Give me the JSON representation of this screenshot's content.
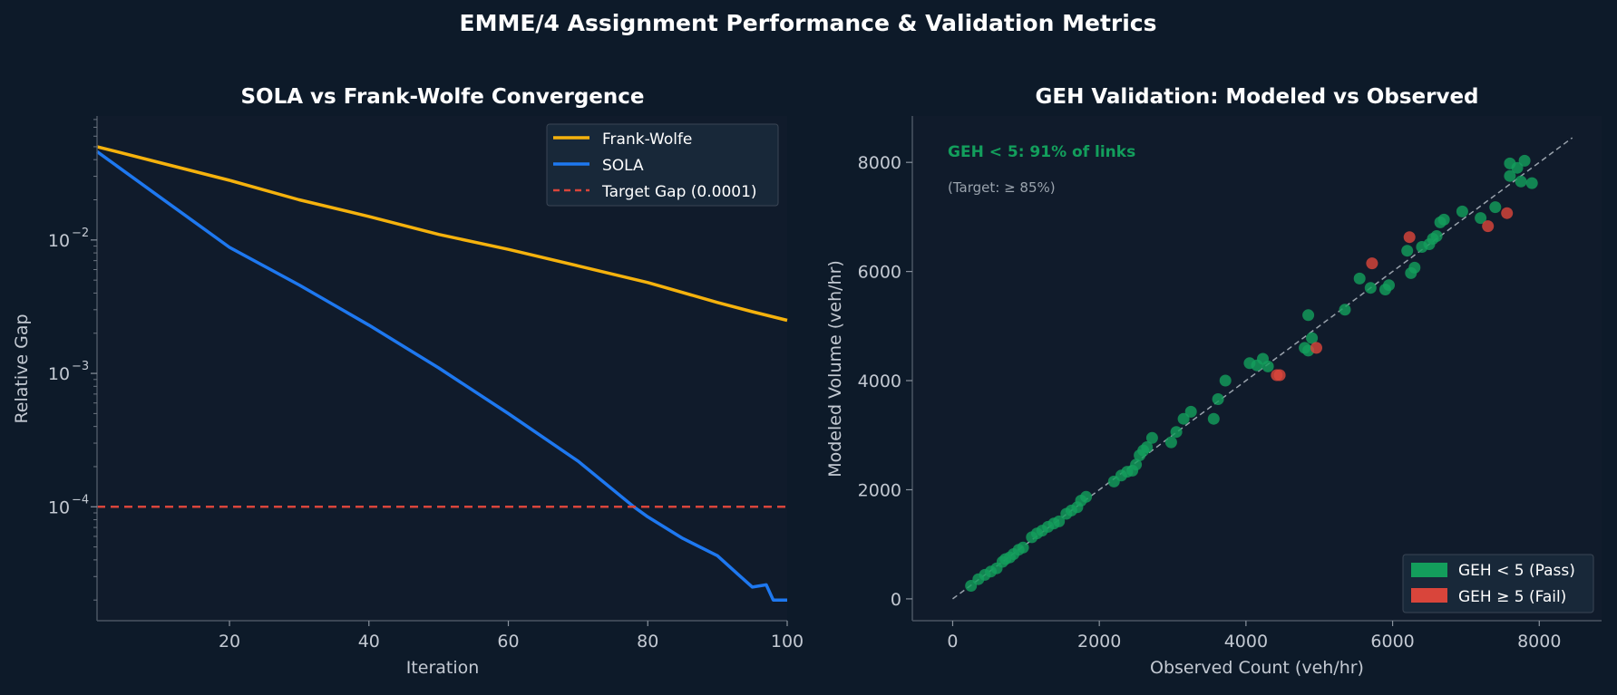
{
  "suptitle": "EMME/4 Assignment Performance & Validation Metrics",
  "colors": {
    "background": "#0d1a29",
    "axes_bg": "#101b2b",
    "frank_wolfe": "#f5b20d",
    "sola": "#1e78f0",
    "target": "#d9453b",
    "pass": "#139e5c",
    "fail": "#d9453b",
    "annotation": "#139e5c"
  },
  "chart_data": [
    {
      "type": "line",
      "title": "SOLA vs Frank-Wolfe Convergence",
      "xlabel": "Iteration",
      "ylabel": "Relative Gap",
      "xlim": [
        1,
        100
      ],
      "ylim": [
        1.4e-05,
        0.085
      ],
      "yscale": "log",
      "grid": false,
      "legend_position": "upper-right",
      "x_ticks": [
        "20",
        "40",
        "60",
        "80",
        "100"
      ],
      "y_ticks": [
        "10",
        "10",
        "10"
      ],
      "y_tick_exponents": [
        "−2",
        "−3",
        "−4"
      ],
      "series": [
        {
          "name": "Frank-Wolfe",
          "x": [
            1,
            10,
            20,
            30,
            40,
            50,
            60,
            70,
            80,
            90,
            95,
            100
          ],
          "y": [
            0.05,
            0.038,
            0.028,
            0.02,
            0.015,
            0.011,
            0.0085,
            0.0064,
            0.0048,
            0.0034,
            0.0029,
            0.0025
          ]
        },
        {
          "name": "SOLA",
          "x": [
            1,
            10,
            20,
            30,
            40,
            50,
            60,
            70,
            78,
            80,
            85,
            90,
            93,
            95,
            97,
            98,
            100
          ],
          "y": [
            0.046,
            0.021,
            0.0088,
            0.0046,
            0.0023,
            0.0011,
            0.0005,
            0.00022,
            0.0001,
            8.4e-05,
            5.8e-05,
            4.3e-05,
            3.1e-05,
            2.5e-05,
            2.6e-05,
            2e-05,
            2e-05
          ]
        },
        {
          "name": "Target Gap (0.0001)",
          "style": "dashed",
          "x": [
            1,
            100
          ],
          "y": [
            0.0001,
            0.0001
          ]
        }
      ]
    },
    {
      "type": "scatter",
      "title": "GEH Validation: Modeled vs Observed",
      "xlabel": "Observed Count (veh/hr)",
      "ylabel": "Modeled Volume (veh/hr)",
      "xlim": [
        -550,
        8850
      ],
      "ylim": [
        -400,
        8850
      ],
      "grid": false,
      "legend_position": "lower-right",
      "x_ticks": [
        "0",
        "2000",
        "4000",
        "6000",
        "8000"
      ],
      "y_ticks": [
        "0",
        "2000",
        "4000",
        "6000",
        "8000"
      ],
      "annotation": "GEH < 5: 91% of links",
      "subannotation": "(Target: ≥ 85%)",
      "reference_line": {
        "x": [
          0,
          8450
        ],
        "y": [
          0,
          8450
        ]
      },
      "series": [
        {
          "name": "GEH < 5 (Pass)",
          "points": [
            [
              250,
              240
            ],
            [
              350,
              360
            ],
            [
              440,
              440
            ],
            [
              520,
              500
            ],
            [
              600,
              560
            ],
            [
              680,
              680
            ],
            [
              720,
              730
            ],
            [
              780,
              760
            ],
            [
              830,
              820
            ],
            [
              900,
              900
            ],
            [
              960,
              940
            ],
            [
              1080,
              1130
            ],
            [
              1150,
              1200
            ],
            [
              1220,
              1250
            ],
            [
              1300,
              1320
            ],
            [
              1380,
              1380
            ],
            [
              1450,
              1420
            ],
            [
              1550,
              1560
            ],
            [
              1620,
              1620
            ],
            [
              1700,
              1680
            ],
            [
              1750,
              1800
            ],
            [
              1820,
              1870
            ],
            [
              2200,
              2150
            ],
            [
              2300,
              2260
            ],
            [
              2380,
              2330
            ],
            [
              2450,
              2350
            ],
            [
              2500,
              2460
            ],
            [
              2550,
              2630
            ],
            [
              2600,
              2720
            ],
            [
              2650,
              2780
            ],
            [
              2720,
              2950
            ],
            [
              2980,
              2870
            ],
            [
              3050,
              3060
            ],
            [
              3150,
              3300
            ],
            [
              3250,
              3430
            ],
            [
              3560,
              3300
            ],
            [
              3620,
              3660
            ],
            [
              3720,
              4000
            ],
            [
              4050,
              4320
            ],
            [
              4150,
              4280
            ],
            [
              4230,
              4400
            ],
            [
              4300,
              4260
            ],
            [
              4800,
              4600
            ],
            [
              4850,
              4550
            ],
            [
              4850,
              5200
            ],
            [
              4900,
              4780
            ],
            [
              5350,
              5300
            ],
            [
              5550,
              5870
            ],
            [
              5700,
              5700
            ],
            [
              5900,
              5670
            ],
            [
              5950,
              5750
            ],
            [
              6250,
              5970
            ],
            [
              6300,
              6070
            ],
            [
              6200,
              6380
            ],
            [
              6400,
              6450
            ],
            [
              6500,
              6500
            ],
            [
              6550,
              6600
            ],
            [
              6600,
              6650
            ],
            [
              6650,
              6900
            ],
            [
              6700,
              6950
            ],
            [
              6950,
              7100
            ],
            [
              7200,
              6980
            ],
            [
              7400,
              7180
            ],
            [
              7600,
              7750
            ],
            [
              7600,
              7980
            ],
            [
              7700,
              7900
            ],
            [
              7750,
              7650
            ],
            [
              7800,
              8030
            ],
            [
              7900,
              7620
            ]
          ]
        },
        {
          "name": "GEH ≥ 5 (Fail)",
          "points": [
            [
              4420,
              4100
            ],
            [
              4460,
              4100
            ],
            [
              4960,
              4600
            ],
            [
              5720,
              6150
            ],
            [
              6230,
              6630
            ],
            [
              7300,
              6830
            ],
            [
              7560,
              7070
            ]
          ]
        }
      ]
    }
  ]
}
